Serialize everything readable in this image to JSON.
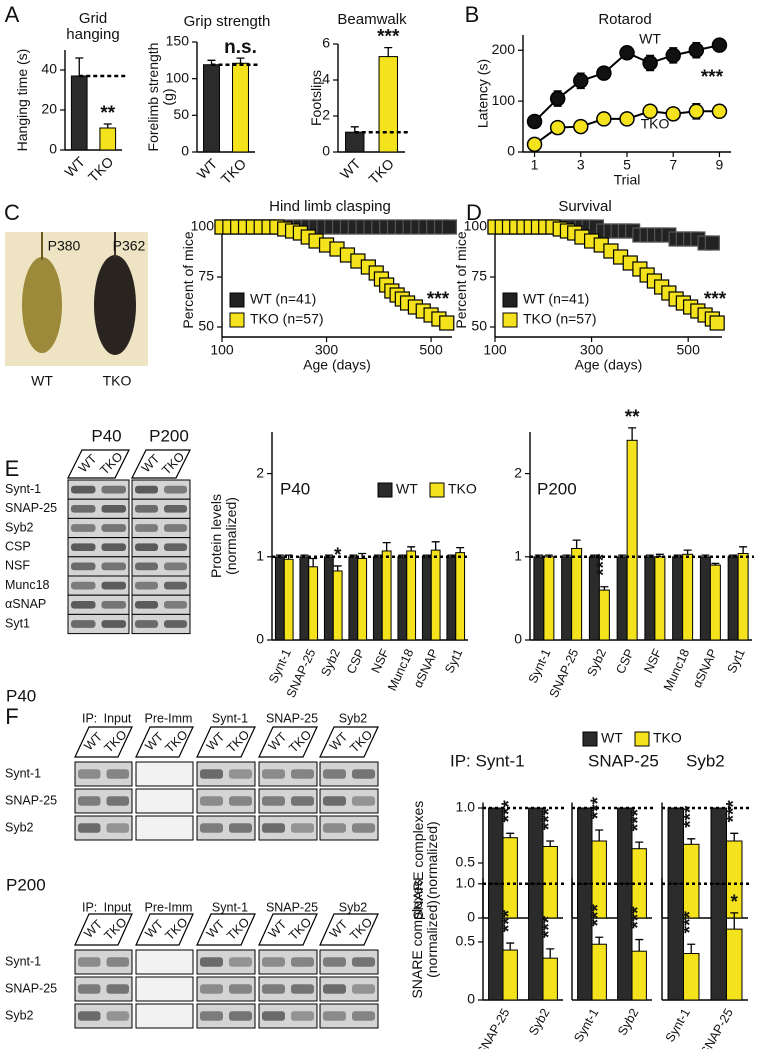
{
  "panel_letters": [
    "A",
    "B",
    "C",
    "D",
    "E",
    "F"
  ],
  "photo": {
    "labels": [
      "P380",
      "P362"
    ],
    "captions": [
      "WT",
      "TKO"
    ]
  },
  "blots_E": {
    "timepoints": [
      "P40",
      "P200"
    ],
    "lanes": [
      "WT",
      "TKO"
    ],
    "proteins": [
      "Synt-1",
      "SNAP-25",
      "Syb2",
      "CSP",
      "NSF",
      "Munc18",
      "αSNAP",
      "Syt1"
    ]
  },
  "blots_F": [
    {
      "timepoint": "P40",
      "ip_label": "IP:",
      "groups": [
        "Input",
        "Pre-Imm",
        "Synt-1",
        "SNAP-25",
        "Syb2"
      ],
      "lanes": [
        "WT",
        "TKO"
      ],
      "proteins": [
        "Synt-1",
        "SNAP-25",
        "Syb2"
      ]
    },
    {
      "timepoint": "P200",
      "ip_label": "IP:",
      "groups": [
        "Input",
        "Pre-Imm",
        "Synt-1",
        "SNAP-25",
        "Syb2"
      ],
      "lanes": [
        "WT",
        "TKO"
      ],
      "proteins": [
        "Synt-1",
        "SNAP-25",
        "Syb2"
      ]
    }
  ],
  "chart_data": [
    {
      "type": "bar",
      "title": "Grid hanging",
      "categories": [
        "WT",
        "TKO"
      ],
      "values": [
        37,
        11
      ],
      "errors": [
        9,
        2
      ],
      "colors": [
        "#2b2b2b",
        "#f3e21c"
      ],
      "sig": [
        null,
        "**"
      ],
      "ylabel": "Hanging time (s)",
      "ylim": [
        0,
        50
      ],
      "yticks": [
        0,
        20,
        40
      ],
      "dashed_reference": true
    },
    {
      "type": "bar",
      "title": "Grip strength",
      "categories": [
        "WT",
        "TKO"
      ],
      "values": [
        119,
        121
      ],
      "errors": [
        6,
        7
      ],
      "colors": [
        "#2b2b2b",
        "#f3e21c"
      ],
      "sig": [
        null,
        "n.s."
      ],
      "ylabel": "Forelimb strength (g)",
      "ylim": [
        0,
        150
      ],
      "yticks": [
        0,
        50,
        100,
        150
      ],
      "dashed_reference": true
    },
    {
      "type": "bar",
      "title": "Beamwalk",
      "categories": [
        "WT",
        "TKO"
      ],
      "values": [
        1.1,
        5.3
      ],
      "errors": [
        0.3,
        0.5
      ],
      "colors": [
        "#2b2b2b",
        "#f3e21c"
      ],
      "sig": [
        null,
        "***"
      ],
      "ylabel": "Footslips",
      "ylim": [
        0,
        6
      ],
      "yticks": [
        0,
        2,
        4,
        6
      ],
      "dashed_reference": true
    },
    {
      "type": "line",
      "title": "Rotarod",
      "x": [
        1,
        2,
        3,
        4,
        5,
        6,
        7,
        8,
        9
      ],
      "xlabel": "Trial",
      "ylabel": "Latency (s)",
      "xlim": [
        0.5,
        9.5
      ],
      "xticks": [
        1,
        3,
        5,
        7,
        9
      ],
      "ylim": [
        0,
        230
      ],
      "yticks": [
        0,
        100,
        200
      ],
      "annotation": "***",
      "series": [
        {
          "name": "WT",
          "color": "#111111",
          "values": [
            60,
            105,
            140,
            155,
            195,
            175,
            190,
            200,
            210
          ],
          "errors": [
            8,
            15,
            15,
            10,
            10,
            15,
            15,
            15,
            8
          ]
        },
        {
          "name": "TKO",
          "color": "#f3e21c",
          "values": [
            15,
            48,
            50,
            65,
            65,
            80,
            75,
            80,
            80
          ],
          "errors": [
            5,
            5,
            5,
            5,
            5,
            12,
            12,
            15,
            12
          ]
        }
      ]
    },
    {
      "type": "step",
      "title": "Hind limb clasping",
      "xlabel": "Age (days)",
      "ylabel": "Percent of mice",
      "xlim": [
        100,
        540
      ],
      "xticks": [
        100,
        300,
        500
      ],
      "ylim": [
        45,
        102
      ],
      "yticks": [
        50,
        75,
        100
      ],
      "annotation": "***",
      "series": [
        {
          "name": "WT (n=41)",
          "color": "#222222",
          "x": [
            100,
            115,
            130,
            145,
            160,
            175,
            190,
            205,
            220,
            235,
            250,
            265,
            280,
            295,
            310,
            325,
            340,
            355,
            370,
            385,
            400,
            415,
            430,
            445,
            460,
            475,
            490,
            505,
            520,
            535
          ],
          "values": [
            100,
            100,
            100,
            100,
            100,
            100,
            100,
            100,
            100,
            100,
            100,
            100,
            100,
            100,
            100,
            100,
            100,
            100,
            100,
            100,
            100,
            100,
            100,
            100,
            100,
            100,
            100,
            100,
            100,
            100
          ]
        },
        {
          "name": "TKO (n=57)",
          "color": "#f3e21c",
          "x": [
            100,
            115,
            130,
            145,
            160,
            175,
            190,
            205,
            220,
            235,
            250,
            265,
            280,
            300,
            320,
            340,
            360,
            380,
            395,
            405,
            415,
            425,
            435,
            445,
            455,
            470,
            485,
            500,
            515,
            530
          ],
          "values": [
            100,
            100,
            100,
            100,
            100,
            100,
            100,
            100,
            99,
            98,
            97,
            95,
            93,
            91,
            89,
            86,
            83,
            80,
            77,
            74,
            71,
            68,
            66,
            64,
            62,
            60,
            58,
            56,
            54,
            52
          ]
        }
      ]
    },
    {
      "type": "step",
      "title": "Survival",
      "xlabel": "Age (days)",
      "ylabel": "Percent of mice",
      "xlim": [
        100,
        570
      ],
      "xticks": [
        100,
        300,
        500
      ],
      "ylim": [
        45,
        102
      ],
      "yticks": [
        50,
        75,
        100
      ],
      "annotation": "***",
      "series": [
        {
          "name": "WT (n=41)",
          "color": "#222222",
          "x": [
            100,
            115,
            130,
            145,
            160,
            175,
            190,
            205,
            220,
            235,
            250,
            265,
            280,
            295,
            310,
            325,
            340,
            355,
            370,
            385,
            400,
            415,
            430,
            445,
            460,
            475,
            490,
            505,
            520,
            535,
            550
          ],
          "values": [
            100,
            100,
            100,
            100,
            100,
            100,
            100,
            100,
            100,
            100,
            100,
            100,
            100,
            100,
            100,
            98,
            98,
            98,
            98,
            98,
            96,
            96,
            96,
            96,
            96,
            94,
            94,
            94,
            94,
            92,
            92
          ]
        },
        {
          "name": "TKO (n=57)",
          "color": "#f3e21c",
          "x": [
            100,
            115,
            130,
            145,
            160,
            175,
            190,
            205,
            220,
            235,
            250,
            265,
            280,
            300,
            320,
            340,
            360,
            380,
            400,
            415,
            430,
            445,
            460,
            475,
            490,
            505,
            520,
            535,
            550,
            560
          ],
          "values": [
            100,
            100,
            100,
            100,
            100,
            100,
            100,
            100,
            100,
            99,
            98,
            97,
            95,
            93,
            91,
            88,
            85,
            82,
            79,
            76,
            73,
            70,
            67,
            64,
            62,
            60,
            58,
            56,
            54,
            52
          ]
        }
      ]
    },
    {
      "type": "bar",
      "subtitle": "P40",
      "categories": [
        "Synt-1",
        "SNAP-25",
        "Syb2",
        "CSP",
        "NSF",
        "Munc18",
        "αSNAP",
        "Syt1"
      ],
      "ylabel": "Protein levels (normalized)",
      "ylim": [
        0,
        2.5
      ],
      "yticks": [
        0,
        1,
        2
      ],
      "reference_line": 1,
      "legend": true,
      "series": [
        {
          "name": "WT",
          "color": "#2b2b2b",
          "values": [
            1,
            1,
            1,
            1,
            1,
            1,
            1,
            1
          ],
          "errors": [
            0.02,
            0.02,
            0.02,
            0.02,
            0.02,
            0.02,
            0.02,
            0.02
          ]
        },
        {
          "name": "TKO",
          "color": "#f3e21c",
          "values": [
            0.97,
            0.88,
            0.83,
            0.98,
            1.07,
            1.07,
            1.08,
            1.05
          ],
          "errors": [
            0.05,
            0.1,
            0.06,
            0.06,
            0.1,
            0.05,
            0.1,
            0.06
          ],
          "sig": [
            null,
            null,
            "*",
            null,
            null,
            null,
            null,
            null
          ]
        }
      ]
    },
    {
      "type": "bar",
      "subtitle": "P200",
      "categories": [
        "Synt-1",
        "SNAP-25",
        "Syb2",
        "CSP",
        "NSF",
        "Munc18",
        "αSNAP",
        "Syt1"
      ],
      "ylim": [
        0,
        2.5
      ],
      "yticks": [
        0,
        1,
        2
      ],
      "reference_line": 1,
      "series": [
        {
          "name": "WT",
          "color": "#2b2b2b",
          "values": [
            1,
            1,
            1,
            1,
            1,
            1,
            1,
            1
          ],
          "errors": [
            0.02,
            0.02,
            0.02,
            0.02,
            0.02,
            0.02,
            0.02,
            0.02
          ]
        },
        {
          "name": "TKO",
          "color": "#f3e21c",
          "values": [
            1.0,
            1.1,
            0.6,
            2.4,
            1.0,
            1.03,
            0.9,
            1.04
          ],
          "errors": [
            0.02,
            0.1,
            0.04,
            0.15,
            0.03,
            0.05,
            0.02,
            0.08
          ],
          "sig": [
            null,
            null,
            "***",
            "**",
            null,
            null,
            null,
            null
          ]
        }
      ]
    },
    {
      "type": "bar",
      "subtitle": "IP: Synt-1",
      "ylabel": "SNARE complexes (normalized)",
      "ylim": [
        0,
        1.05
      ],
      "yticks": [
        0,
        0.5,
        {
          "value": 1,
          "label": "1.0"
        }
      ],
      "reference_line": 1,
      "legend": true,
      "series": [
        {
          "name": "WT",
          "color": "#2b2b2b",
          "values": [
            1,
            1
          ]
        },
        {
          "name": "TKO",
          "color": "#f3e21c",
          "values": [
            0.73,
            0.65
          ],
          "errors": [
            0.04,
            0.05
          ],
          "sig": [
            "***",
            "***"
          ]
        }
      ]
    },
    {
      "type": "bar",
      "subtitle": "SNAP-25",
      "ylim": [
        0,
        1.05
      ],
      "reference_line": 1,
      "series": [
        {
          "name": "WT",
          "color": "#2b2b2b",
          "values": [
            1,
            1
          ]
        },
        {
          "name": "TKO",
          "color": "#f3e21c",
          "values": [
            0.7,
            0.63
          ],
          "errors": [
            0.1,
            0.06
          ],
          "sig": [
            "***",
            "***"
          ]
        }
      ]
    },
    {
      "type": "bar",
      "subtitle": "Syb2",
      "ylim": [
        0,
        1.05
      ],
      "reference_line": 1,
      "series": [
        {
          "name": "WT",
          "color": "#2b2b2b",
          "values": [
            1,
            1
          ]
        },
        {
          "name": "TKO",
          "color": "#f3e21c",
          "values": [
            0.67,
            0.7
          ],
          "errors": [
            0.05,
            0.07
          ],
          "sig": [
            "***",
            "***"
          ]
        }
      ]
    },
    {
      "type": "bar",
      "categories": [
        "SNAP-25",
        "Syb2"
      ],
      "ylabel": "SNARE complexes (normalized)",
      "ylim": [
        0,
        1.05
      ],
      "yticks": [
        0,
        0.5,
        {
          "value": 1,
          "label": "1.0"
        }
      ],
      "reference_line": 1,
      "series": [
        {
          "name": "WT",
          "color": "#2b2b2b",
          "values": [
            1,
            1
          ]
        },
        {
          "name": "TKO",
          "color": "#f3e21c",
          "values": [
            0.43,
            0.36
          ],
          "errors": [
            0.06,
            0.08
          ],
          "sig": [
            "***",
            "***"
          ]
        }
      ]
    },
    {
      "type": "bar",
      "categories": [
        "Synt-1",
        "Syb2"
      ],
      "ylim": [
        0,
        1.05
      ],
      "reference_line": 1,
      "series": [
        {
          "name": "WT",
          "color": "#2b2b2b",
          "values": [
            1,
            1
          ]
        },
        {
          "name": "TKO",
          "color": "#f3e21c",
          "values": [
            0.48,
            0.42
          ],
          "errors": [
            0.06,
            0.1
          ],
          "sig": [
            "***",
            "***"
          ]
        }
      ]
    },
    {
      "type": "bar",
      "categories": [
        "Synt-1",
        "SNAP-25"
      ],
      "ylim": [
        0,
        1.05
      ],
      "reference_line": 1,
      "series": [
        {
          "name": "WT",
          "color": "#2b2b2b",
          "values": [
            1,
            1
          ]
        },
        {
          "name": "TKO",
          "color": "#f3e21c",
          "values": [
            0.4,
            0.61
          ],
          "errors": [
            0.08,
            0.14
          ],
          "sig": [
            "***",
            "*"
          ]
        }
      ]
    }
  ]
}
